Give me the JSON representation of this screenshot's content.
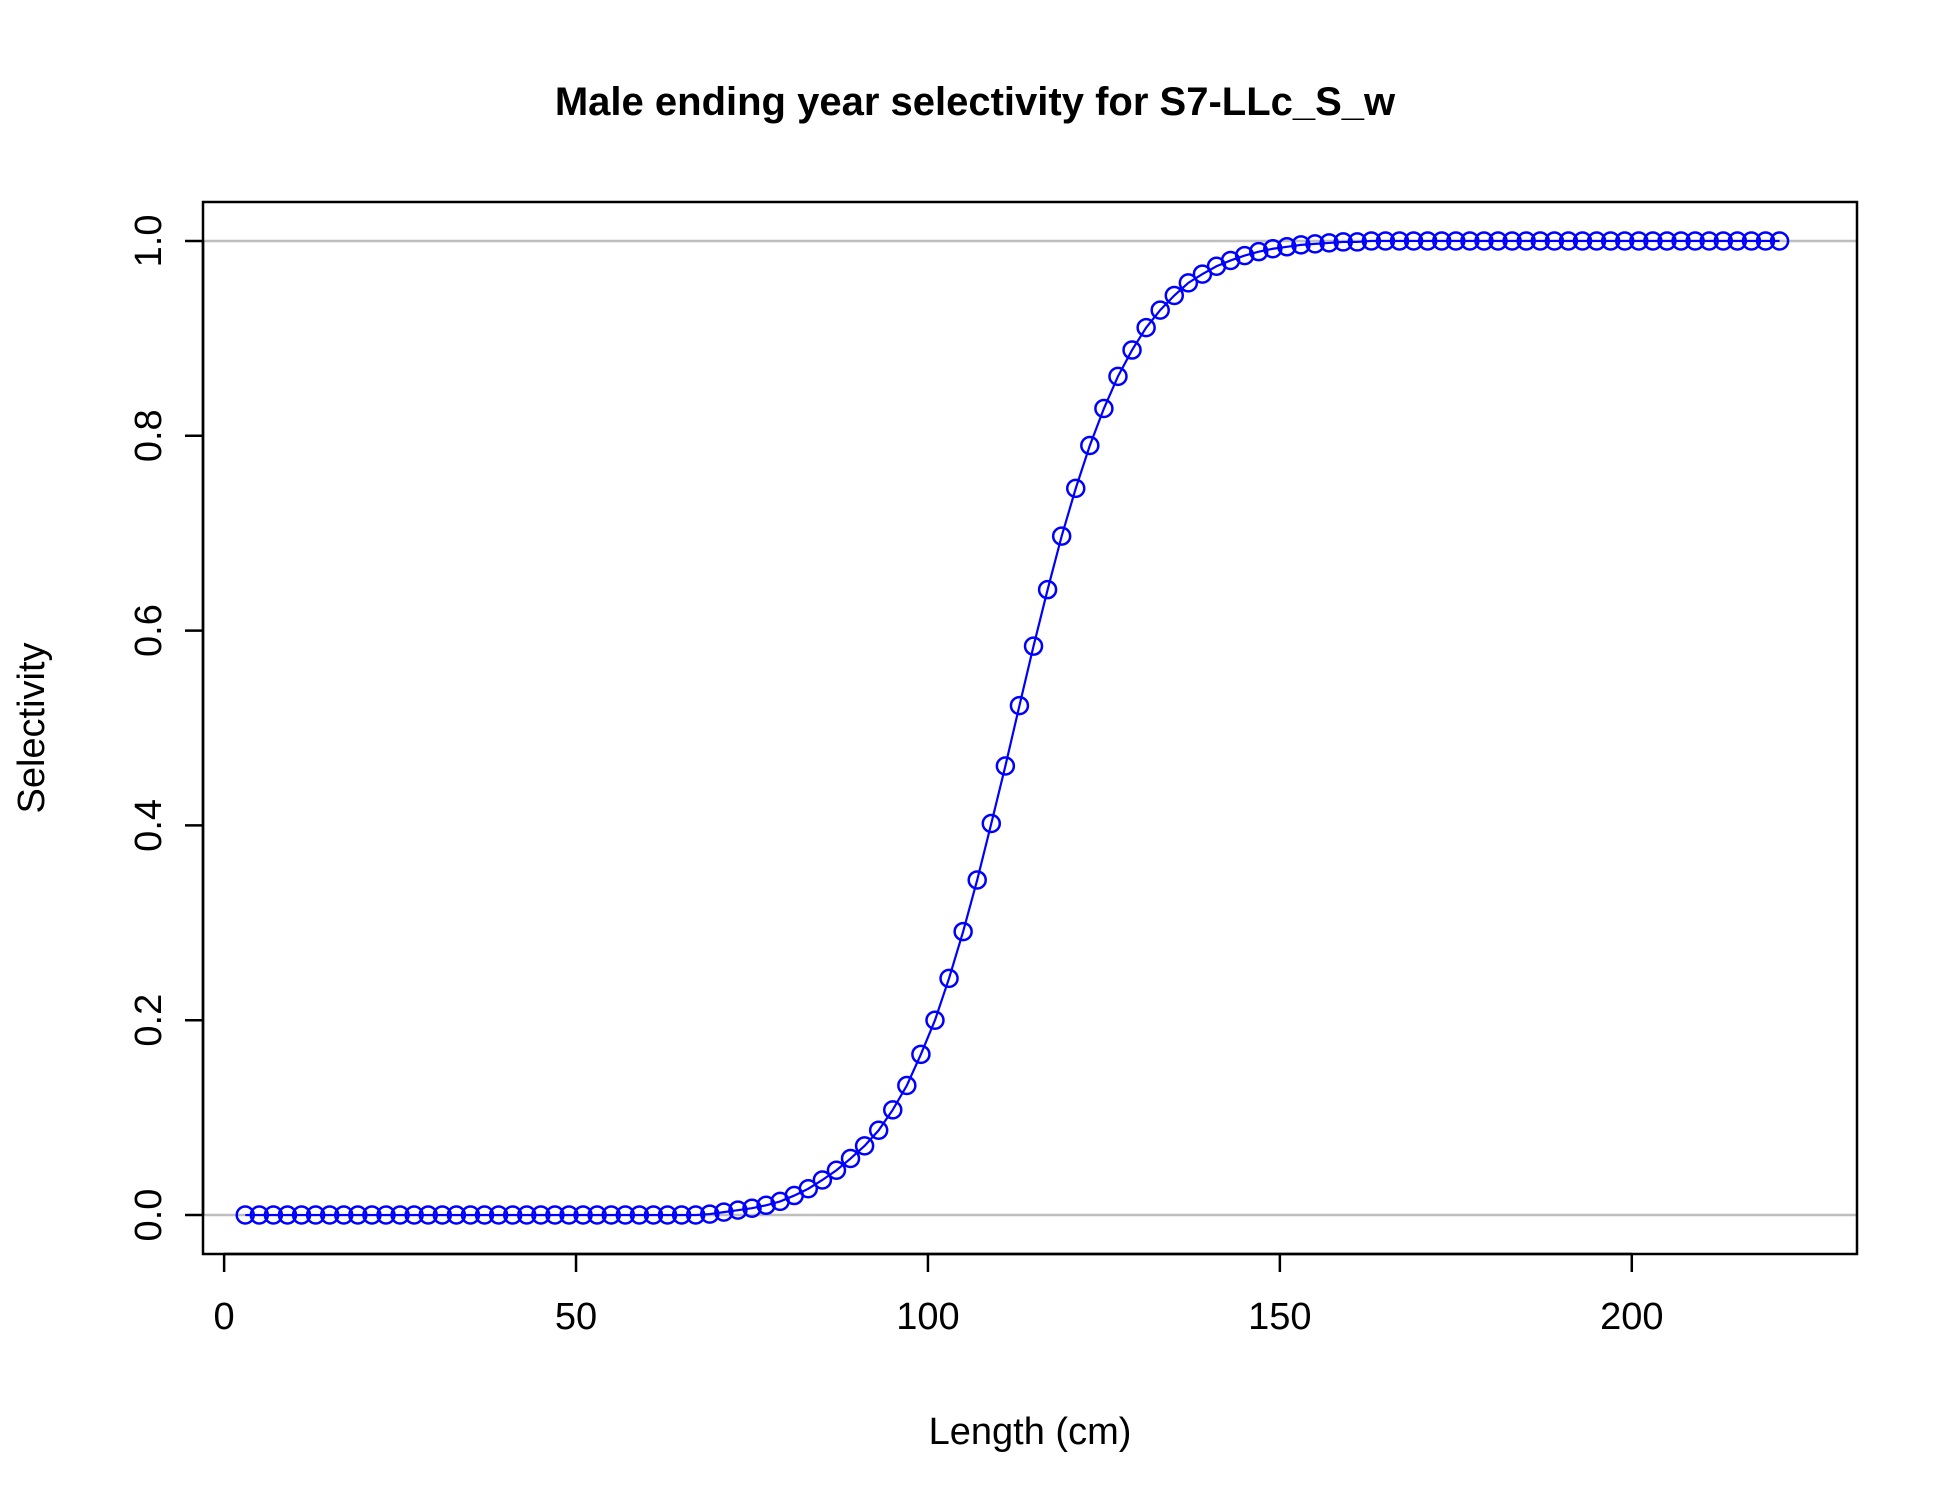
{
  "chart_data": {
    "type": "line",
    "title": "Male ending year selectivity for S7-LLc_S_w",
    "xlabel": "Length (cm)",
    "ylabel": "Selectivity",
    "xlim": [
      -3,
      232
    ],
    "ylim": [
      -0.04,
      1.04
    ],
    "x_ticks": [
      0,
      50,
      100,
      150,
      200
    ],
    "y_ticks": [
      0.0,
      0.2,
      0.4,
      0.6,
      0.8,
      1.0
    ],
    "x_tick_labels": [
      "0",
      "50",
      "100",
      "150",
      "200"
    ],
    "y_tick_labels": [
      "0.0",
      "0.2",
      "0.4",
      "0.6",
      "0.8",
      "1.0"
    ],
    "reference_lines": [
      0,
      1
    ],
    "grid": false,
    "series": [
      {
        "color": "#0000ff",
        "marker": "open-circle",
        "x": [
          3,
          5,
          7,
          9,
          11,
          13,
          15,
          17,
          19,
          21,
          23,
          25,
          27,
          29,
          31,
          33,
          35,
          37,
          39,
          41,
          43,
          45,
          47,
          49,
          51,
          53,
          55,
          57,
          59,
          61,
          63,
          65,
          67,
          69,
          71,
          73,
          75,
          77,
          79,
          81,
          83,
          85,
          87,
          89,
          91,
          93,
          95,
          97,
          99,
          101,
          103,
          105,
          107,
          109,
          111,
          113,
          115,
          117,
          119,
          121,
          123,
          125,
          127,
          129,
          131,
          133,
          135,
          137,
          139,
          141,
          143,
          145,
          147,
          149,
          151,
          153,
          155,
          157,
          159,
          161,
          163,
          165,
          167,
          169,
          171,
          173,
          175,
          177,
          179,
          181,
          183,
          185,
          187,
          189,
          191,
          193,
          195,
          197,
          199,
          201,
          203,
          205,
          207,
          209,
          211,
          213,
          215,
          217,
          219,
          221
        ],
        "y": [
          0,
          0,
          0,
          0,
          0,
          0,
          0,
          0,
          0,
          0,
          0,
          0,
          0,
          0,
          0,
          0,
          0,
          0,
          0,
          0,
          0,
          0,
          0,
          0,
          0,
          0,
          0,
          0,
          0,
          0,
          0,
          0,
          0,
          0.001,
          0.003,
          0.005,
          0.007,
          0.01,
          0.014,
          0.02,
          0.027,
          0.036,
          0.046,
          0.058,
          0.071,
          0.087,
          0.108,
          0.133,
          0.165,
          0.2,
          0.243,
          0.291,
          0.344,
          0.402,
          0.461,
          0.523,
          0.584,
          0.642,
          0.697,
          0.746,
          0.79,
          0.828,
          0.861,
          0.888,
          0.911,
          0.929,
          0.944,
          0.957,
          0.966,
          0.974,
          0.98,
          0.985,
          0.989,
          0.992,
          0.994,
          0.996,
          0.997,
          0.998,
          0.999,
          0.999,
          1,
          1,
          1,
          1,
          1,
          1,
          1,
          1,
          1,
          1,
          1,
          1,
          1,
          1,
          1,
          1,
          1,
          1,
          1,
          1,
          1,
          1,
          1,
          1,
          1,
          1,
          1,
          1,
          1,
          1
        ]
      }
    ]
  }
}
